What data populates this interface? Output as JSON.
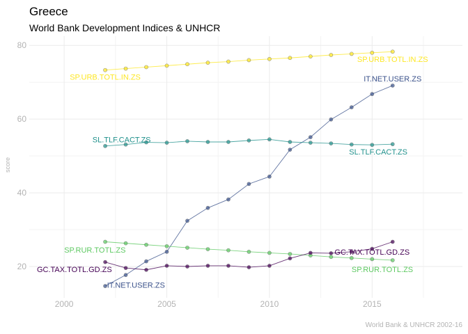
{
  "chart_data": {
    "type": "line",
    "title": "Greece",
    "subtitle": "World Bank Development Indices & UNHCR",
    "xlabel": "",
    "ylabel": "score",
    "caption": "World Bank & UNHCR 2002-16",
    "xlim": [
      1998.3,
      2019.4
    ],
    "ylim": [
      11.5,
      82.5
    ],
    "x_ticks": [
      2000,
      2005,
      2010,
      2015
    ],
    "y_ticks": [
      20,
      40,
      60,
      80
    ],
    "grid": true,
    "legend": "none",
    "x": [
      2002,
      2003,
      2004,
      2005,
      2006,
      2007,
      2008,
      2009,
      2010,
      2011,
      2012,
      2013,
      2014,
      2015,
      2016
    ],
    "series": [
      {
        "name": "SP.URB.TOTL.IN.ZS",
        "color": "#fde725",
        "values": [
          73.3,
          73.7,
          74.1,
          74.5,
          74.9,
          75.3,
          75.6,
          76.0,
          76.3,
          76.6,
          77.0,
          77.4,
          77.7,
          78.0,
          78.3
        ]
      },
      {
        "name": "IT.NET.USER.ZS",
        "color": "#3b528b",
        "values": [
          14.7,
          17.7,
          21.4,
          24.0,
          32.4,
          35.9,
          38.2,
          42.4,
          44.4,
          51.7,
          55.1,
          59.9,
          63.2,
          66.8,
          69.1
        ]
      },
      {
        "name": "SL.TLF.CACT.ZS",
        "color": "#21918c",
        "values": [
          52.7,
          53.1,
          53.7,
          53.6,
          54.0,
          53.8,
          53.8,
          54.2,
          54.5,
          53.8,
          53.6,
          53.4,
          53.1,
          53.0,
          53.2
        ]
      },
      {
        "name": "SP.RUR.TOTL.ZS",
        "color": "#5ec962",
        "values": [
          26.7,
          26.3,
          25.9,
          25.5,
          25.1,
          24.7,
          24.4,
          24.0,
          23.7,
          23.4,
          23.0,
          22.6,
          22.3,
          22.0,
          21.7
        ]
      },
      {
        "name": "GC.TAX.TOTL.GD.ZS",
        "color": "#440154",
        "values": [
          21.2,
          19.6,
          19.1,
          20.2,
          20.0,
          20.2,
          20.2,
          19.8,
          20.2,
          22.2,
          23.7,
          23.6,
          24.0,
          24.8,
          26.7
        ]
      }
    ],
    "labels": [
      {
        "series": 0,
        "text": "SP.URB.TOTL.IN.ZS",
        "x": 2002,
        "y": 71.5
      },
      {
        "series": 0,
        "text": "SP.URB.TOTL.IN.ZS",
        "x": 2016,
        "y": 76.3
      },
      {
        "series": 1,
        "text": "IT.NET.USER.ZS",
        "x": 2016,
        "y": 71.0
      },
      {
        "series": 1,
        "text": "IT.NET.USER.ZS",
        "x": 2003.5,
        "y": 15.0
      },
      {
        "series": 2,
        "text": "SL.TLF.CACT.ZS",
        "x": 2002.8,
        "y": 54.5
      },
      {
        "series": 2,
        "text": "SL.TLF.CACT.ZS",
        "x": 2015.3,
        "y": 51.2
      },
      {
        "series": 3,
        "text": "SP.RUR.TOTL.ZS",
        "x": 2001.5,
        "y": 24.5
      },
      {
        "series": 3,
        "text": "SP.RUR.TOTL.ZS",
        "x": 2015.5,
        "y": 19.2
      },
      {
        "series": 4,
        "text": "GC.TAX.TOTL.GD.ZS",
        "x": 2000.5,
        "y": 19.2
      },
      {
        "series": 4,
        "text": "GC.TAX.TOTL.GD.ZS",
        "x": 2015.0,
        "y": 24.0
      }
    ]
  }
}
